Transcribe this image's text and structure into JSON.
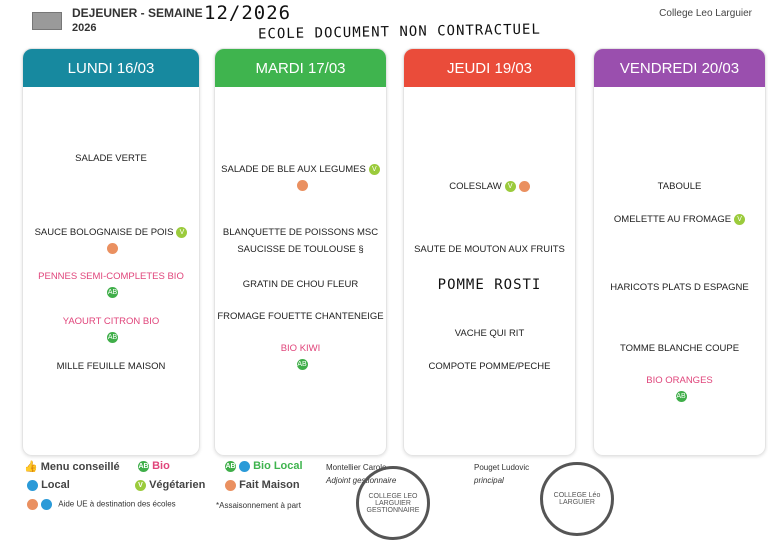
{
  "header": {
    "title": "DEJEUNER - SEMAINE",
    "week_handwritten": "12/2026",
    "year": "2026",
    "note_handwritten": "ECOLE DOCUMENT NON CONTRACTUEL",
    "college": "College Leo Larguier"
  },
  "colors": {
    "lundi": "#17899f",
    "mardi": "#3fb44e",
    "jeudi": "#ea4c3a",
    "vendredi": "#9a4fae",
    "bio_text": "#e0457b"
  },
  "days": [
    {
      "label": "LUNDI 16/03",
      "items": [
        {
          "text": "SALADE VERTE",
          "icons": []
        },
        {
          "text": "SAUCE BOLOGNAISE DE POIS",
          "icons": [
            "vegetarian-icon"
          ],
          "icons_below": [
            "fait-maison-icon"
          ]
        },
        {
          "text": "PENNES SEMI-COMPLETES BIO",
          "bio": true,
          "icons_below": [
            "bio-icon"
          ]
        },
        {
          "text": "YAOURT CITRON BIO",
          "bio": true,
          "icons_below": [
            "bio-icon"
          ]
        },
        {
          "text": "MILLE FEUILLE MAISON"
        }
      ]
    },
    {
      "label": "MARDI 17/03",
      "items": [
        {
          "text": "SALADE DE BLE AUX LEGUMES",
          "icons": [
            "vegetarian-icon"
          ],
          "icons_below": [
            "fait-maison-icon"
          ]
        },
        {
          "text": "BLANQUETTE DE POISSONS MSC"
        },
        {
          "text": "SAUCISSE DE TOULOUSE §"
        },
        {
          "text": "GRATIN DE CHOU FLEUR"
        },
        {
          "text": "FROMAGE FOUETTE CHANTENEIGE"
        },
        {
          "text": "BIO KIWI",
          "bio": true,
          "icons_below": [
            "bio-icon"
          ]
        }
      ]
    },
    {
      "label": "JEUDI 19/03",
      "items": [
        {
          "text": "COLESLAW",
          "icons": [
            "vegetarian-icon",
            "fait-maison-icon"
          ]
        },
        {
          "text": "SAUTE DE MOUTON AUX FRUITS"
        },
        {
          "text": "POMME ROSTI",
          "handwritten": true
        },
        {
          "text": "VACHE QUI RIT"
        },
        {
          "text": "COMPOTE POMME/PECHE"
        }
      ]
    },
    {
      "label": "VENDREDI 20/03",
      "items": [
        {
          "text": "TABOULE"
        },
        {
          "text": "OMELETTE AU FROMAGE",
          "icons": [
            "vegetarian-icon"
          ]
        },
        {
          "text": "HARICOTS PLATS D ESPAGNE"
        },
        {
          "text": "TOMME BLANCHE COUPE"
        },
        {
          "text": "BIO ORANGES",
          "bio": true,
          "icons_below": [
            "bio-icon"
          ]
        }
      ]
    }
  ],
  "legend": {
    "menu_conseille": "Menu conseillé",
    "bio": "Bio",
    "bio_local": "Bio Local",
    "local": "Local",
    "vegetarien": "Végétarien",
    "fait_maison": "Fait Maison",
    "aide_ue": "Aide UE à destination des écoles",
    "assaisonnement": "*Assaisonnement à part"
  },
  "signatures": {
    "s1_name": "Montellier Carole",
    "s1_role": "Adjoint gestionnaire",
    "s1_stamp": "COLLEGE LEO LARGUIER GESTIONNAIRE",
    "s2_name": "Pouget Ludovic",
    "s2_role": "principal",
    "s2_stamp": "COLLEGE Léo LARGUIER"
  }
}
